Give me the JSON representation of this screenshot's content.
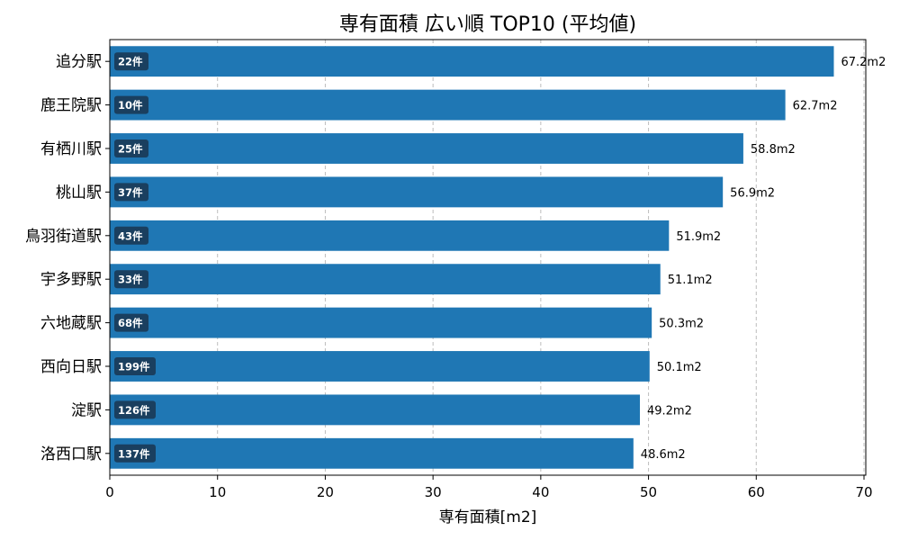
{
  "chart_data": {
    "type": "bar",
    "orientation": "horizontal",
    "title": "専有面積 広い順 TOP10 (平均値)",
    "xlabel": "専有面積[m2]",
    "ylabel": "",
    "xlim": [
      0,
      70
    ],
    "xticks": [
      "0",
      "10",
      "20",
      "30",
      "40",
      "50",
      "60",
      "70"
    ],
    "grid": "x-dashed",
    "bar_color": "#1f77b4",
    "badge_color": "#1a3f5f",
    "categories": [
      "追分駅",
      "鹿王院駅",
      "有栖川駅",
      "桃山駅",
      "鳥羽街道駅",
      "宇多野駅",
      "六地蔵駅",
      "西向日駅",
      "淀駅",
      "洛西口駅"
    ],
    "values": [
      67.2,
      62.7,
      58.8,
      56.9,
      51.9,
      51.1,
      50.3,
      50.1,
      49.2,
      48.6
    ],
    "value_labels": [
      "67.2m2",
      "62.7m2",
      "58.8m2",
      "56.9m2",
      "51.9m2",
      "51.1m2",
      "50.3m2",
      "50.1m2",
      "49.2m2",
      "48.6m2"
    ],
    "counts": [
      "22件",
      "10件",
      "25件",
      "37件",
      "43件",
      "33件",
      "68件",
      "199件",
      "126件",
      "137件"
    ]
  }
}
